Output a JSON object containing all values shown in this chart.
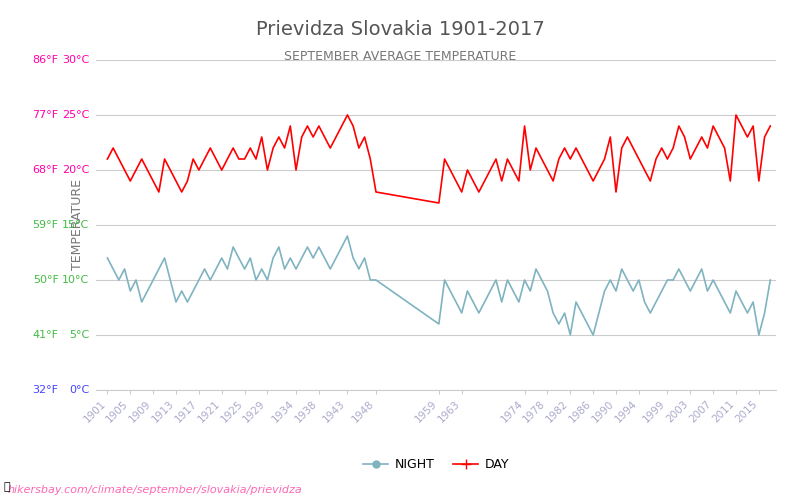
{
  "title": "Prievidza Slovakia 1901-2017",
  "subtitle": "SEPTEMBER AVERAGE TEMPERATURE",
  "xlabel": "",
  "ylabel": "TEMPERATURE",
  "watermark": "hikersbay.com/climate/september/slovakia/prievidza",
  "legend_night": "NIGHT",
  "legend_day": "DAY",
  "day_color": "#ff0000",
  "night_color": "#7fb3c0",
  "bg_color": "#ffffff",
  "grid_color": "#cccccc",
  "title_color": "#555555",
  "subtitle_color": "#777777",
  "ylabel_color": "#777777",
  "ytick_celsius_color": "#ff00aa",
  "ytick_green_color": "#44bb44",
  "ytick_blue_color": "#4444ff",
  "xtick_color": "#aaaacc",
  "ylim": [
    0,
    30
  ],
  "yticks_celsius": [
    0,
    5,
    10,
    15,
    20,
    25,
    30
  ],
  "yticks_fahrenheit": [
    32,
    41,
    50,
    59,
    68,
    77,
    86
  ],
  "xtick_labels": [
    "1901",
    "1905",
    "1909",
    "1913",
    "1917",
    "1921",
    "1925",
    "1929",
    "1934",
    "1938",
    "1943",
    "1948",
    "1959",
    "1963",
    "1974",
    "1978",
    "1982",
    "1986",
    "1990",
    "1994",
    "1999",
    "2003",
    "2007",
    "2011",
    "2015"
  ],
  "xtick_positions": [
    1901,
    1905,
    1909,
    1913,
    1917,
    1921,
    1925,
    1929,
    1934,
    1938,
    1943,
    1948,
    1959,
    1963,
    1974,
    1978,
    1982,
    1986,
    1990,
    1994,
    1999,
    2003,
    2007,
    2011,
    2015
  ],
  "day_years": [
    1901,
    1902,
    1903,
    1904,
    1905,
    1906,
    1907,
    1908,
    1909,
    1910,
    1911,
    1912,
    1913,
    1914,
    1915,
    1916,
    1917,
    1918,
    1919,
    1920,
    1921,
    1922,
    1923,
    1924,
    1925,
    1926,
    1927,
    1928,
    1929,
    1930,
    1931,
    1932,
    1933,
    1934,
    1935,
    1936,
    1937,
    1938,
    1939,
    1940,
    1941,
    1942,
    1943,
    1944,
    1945,
    1946,
    1947,
    1948,
    1959,
    1960,
    1961,
    1962,
    1963,
    1964,
    1965,
    1966,
    1967,
    1968,
    1969,
    1970,
    1971,
    1972,
    1973,
    1974,
    1975,
    1976,
    1977,
    1978,
    1979,
    1980,
    1981,
    1982,
    1983,
    1984,
    1985,
    1986,
    1987,
    1988,
    1989,
    1990,
    1991,
    1992,
    1993,
    1994,
    1995,
    1996,
    1997,
    1998,
    1999,
    2000,
    2001,
    2002,
    2003,
    2004,
    2005,
    2006,
    2007,
    2008,
    2009,
    2010,
    2011,
    2012,
    2013,
    2014,
    2015,
    2016,
    2017
  ],
  "day_temps": [
    21,
    22,
    21,
    20,
    19,
    20,
    21,
    20,
    19,
    18,
    21,
    20,
    19,
    18,
    19,
    21,
    20,
    21,
    22,
    21,
    20,
    21,
    22,
    21,
    21,
    22,
    21,
    23,
    20,
    22,
    23,
    22,
    24,
    20,
    23,
    24,
    23,
    24,
    23,
    22,
    23,
    24,
    25,
    24,
    22,
    23,
    21,
    18,
    17,
    21,
    20,
    19,
    18,
    20,
    19,
    18,
    19,
    20,
    21,
    19,
    21,
    20,
    19,
    24,
    20,
    22,
    21,
    20,
    19,
    21,
    22,
    21,
    22,
    21,
    20,
    19,
    20,
    21,
    23,
    18,
    22,
    23,
    22,
    21,
    20,
    19,
    21,
    22,
    21,
    22,
    24,
    23,
    21,
    22,
    23,
    22,
    24,
    23,
    22,
    19,
    25,
    24,
    23,
    24,
    19,
    23,
    24
  ],
  "night_years": [
    1901,
    1902,
    1903,
    1904,
    1905,
    1906,
    1907,
    1908,
    1909,
    1910,
    1911,
    1912,
    1913,
    1914,
    1915,
    1916,
    1917,
    1918,
    1919,
    1920,
    1921,
    1922,
    1923,
    1924,
    1925,
    1926,
    1927,
    1928,
    1929,
    1930,
    1931,
    1932,
    1933,
    1934,
    1935,
    1936,
    1937,
    1938,
    1939,
    1940,
    1941,
    1942,
    1943,
    1944,
    1945,
    1946,
    1947,
    1948,
    1959,
    1960,
    1961,
    1962,
    1963,
    1964,
    1965,
    1966,
    1967,
    1968,
    1969,
    1970,
    1971,
    1972,
    1973,
    1974,
    1975,
    1976,
    1977,
    1978,
    1979,
    1980,
    1981,
    1982,
    1983,
    1984,
    1985,
    1986,
    1987,
    1988,
    1989,
    1990,
    1991,
    1992,
    1993,
    1994,
    1995,
    1996,
    1997,
    1998,
    1999,
    2000,
    2001,
    2002,
    2003,
    2004,
    2005,
    2006,
    2007,
    2008,
    2009,
    2010,
    2011,
    2012,
    2013,
    2014,
    2015,
    2016,
    2017
  ],
  "night_temps": [
    12,
    11,
    10,
    11,
    9,
    10,
    8,
    9,
    10,
    11,
    12,
    10,
    8,
    9,
    8,
    9,
    10,
    11,
    10,
    11,
    12,
    11,
    13,
    12,
    11,
    12,
    10,
    11,
    10,
    12,
    13,
    11,
    12,
    11,
    12,
    13,
    12,
    13,
    12,
    11,
    12,
    13,
    14,
    12,
    11,
    12,
    10,
    10,
    6,
    10,
    9,
    8,
    7,
    9,
    8,
    7,
    8,
    9,
    10,
    8,
    10,
    9,
    8,
    10,
    9,
    11,
    10,
    9,
    7,
    6,
    7,
    5,
    8,
    7,
    6,
    5,
    7,
    9,
    10,
    9,
    11,
    10,
    9,
    10,
    8,
    7,
    8,
    9,
    10,
    10,
    11,
    10,
    9,
    10,
    11,
    9,
    10,
    9,
    8,
    7,
    9,
    8,
    7,
    8,
    5,
    7,
    10
  ]
}
